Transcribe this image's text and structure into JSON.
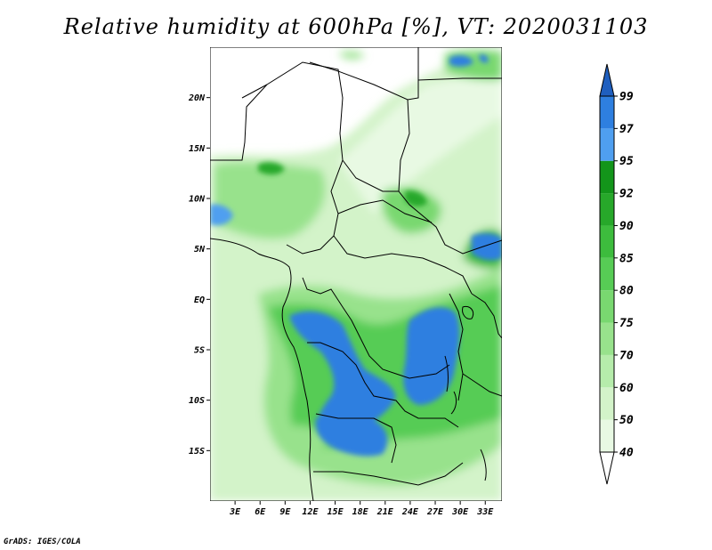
{
  "title": "Relative humidity at 600hPa [%], VT: 2020031103",
  "credit": "GrADS: IGES/COLA",
  "map": {
    "region": "Central Africa",
    "variable": "Relative humidity",
    "level": "600hPa",
    "valid_time": "2020031103",
    "lon_range": [
      0,
      35
    ],
    "lat_range": [
      -20,
      25
    ],
    "lat_ticks": [
      {
        "value": 20,
        "label": "20N"
      },
      {
        "value": 15,
        "label": "15N"
      },
      {
        "value": 10,
        "label": "10N"
      },
      {
        "value": 5,
        "label": "5N"
      },
      {
        "value": 0,
        "label": "EQ"
      },
      {
        "value": -5,
        "label": "5S"
      },
      {
        "value": -10,
        "label": "10S"
      },
      {
        "value": -15,
        "label": "15S"
      }
    ],
    "lon_ticks": [
      {
        "value": 3,
        "label": "3E"
      },
      {
        "value": 6,
        "label": "6E"
      },
      {
        "value": 9,
        "label": "9E"
      },
      {
        "value": 12,
        "label": "12E"
      },
      {
        "value": 15,
        "label": "15E"
      },
      {
        "value": 18,
        "label": "18E"
      },
      {
        "value": 21,
        "label": "21E"
      },
      {
        "value": 24,
        "label": "24E"
      },
      {
        "value": 27,
        "label": "27E"
      },
      {
        "value": 30,
        "label": "30E"
      },
      {
        "value": 33,
        "label": "33E"
      }
    ]
  },
  "colorbar": {
    "levels": [
      {
        "label": "40",
        "color": "#e8f9e3"
      },
      {
        "label": "50",
        "color": "#d3f3c9"
      },
      {
        "label": "60",
        "color": "#b6ecab"
      },
      {
        "label": "70",
        "color": "#98e28c"
      },
      {
        "label": "75",
        "color": "#79d870"
      },
      {
        "label": "80",
        "color": "#57cc55"
      },
      {
        "label": "85",
        "color": "#3dbc3d"
      },
      {
        "label": "90",
        "color": "#27a82a"
      },
      {
        "label": "92",
        "color": "#13951a"
      },
      {
        "label": "95",
        "color": "#4f9ff0"
      },
      {
        "label": "97",
        "color": "#2e7fe0"
      },
      {
        "label": "99",
        "color": "#1f5fbf"
      }
    ],
    "under_color": "#ffffff",
    "over_color": "#1f5fbf"
  }
}
